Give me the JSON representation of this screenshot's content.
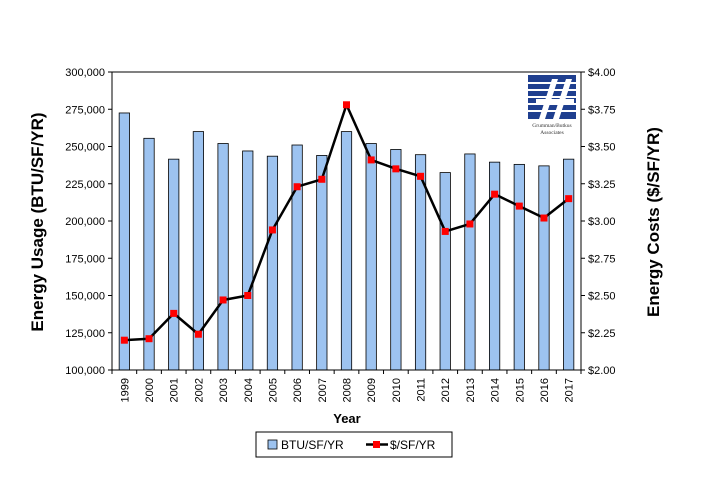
{
  "chart_data": {
    "type": "bar",
    "categories": [
      "1999",
      "2000",
      "2001",
      "2002",
      "2003",
      "2004",
      "2005",
      "2006",
      "2007",
      "2008",
      "2009",
      "2010",
      "2011",
      "2012",
      "2013",
      "2014",
      "2015",
      "2016",
      "2017"
    ],
    "series": [
      {
        "name": "BTU/SF/YR",
        "type": "bar",
        "axis": "left",
        "color": "#9DC3F0",
        "values": [
          272500,
          255500,
          241500,
          260000,
          252000,
          247000,
          243500,
          251000,
          244000,
          260000,
          252000,
          248000,
          244500,
          232500,
          245000,
          239500,
          238000,
          237000,
          241500
        ]
      },
      {
        "name": "$/SF/YR",
        "type": "line",
        "axis": "right",
        "line_color": "#000000",
        "marker_color": "#FF0000",
        "values": [
          2.2,
          2.21,
          2.38,
          2.24,
          2.47,
          2.5,
          2.94,
          3.23,
          3.28,
          3.78,
          3.41,
          3.35,
          3.3,
          2.93,
          2.98,
          3.18,
          3.1,
          3.02,
          3.15
        ]
      }
    ],
    "xlabel": "Year",
    "ylabel": "Energy Usage (BTU/SF/YR)",
    "y2label": "Energy Costs ($/SF/YR)",
    "ylim": [
      100000,
      300000
    ],
    "y2lim": [
      2.0,
      4.0
    ],
    "yticks": [
      "100,000",
      "125,000",
      "150,000",
      "175,000",
      "200,000",
      "225,000",
      "250,000",
      "275,000",
      "300,000"
    ],
    "y2ticks": [
      "$2.00",
      "$2.25",
      "$2.50",
      "$2.75",
      "$3.00",
      "$3.25",
      "$3.50",
      "$3.75",
      "$4.00"
    ],
    "grid": false,
    "legend_position": "bottom"
  },
  "logo": {
    "text_line1": "Grumman/Butkus",
    "text_line2": "Associates",
    "color": "#1F3F8F"
  }
}
